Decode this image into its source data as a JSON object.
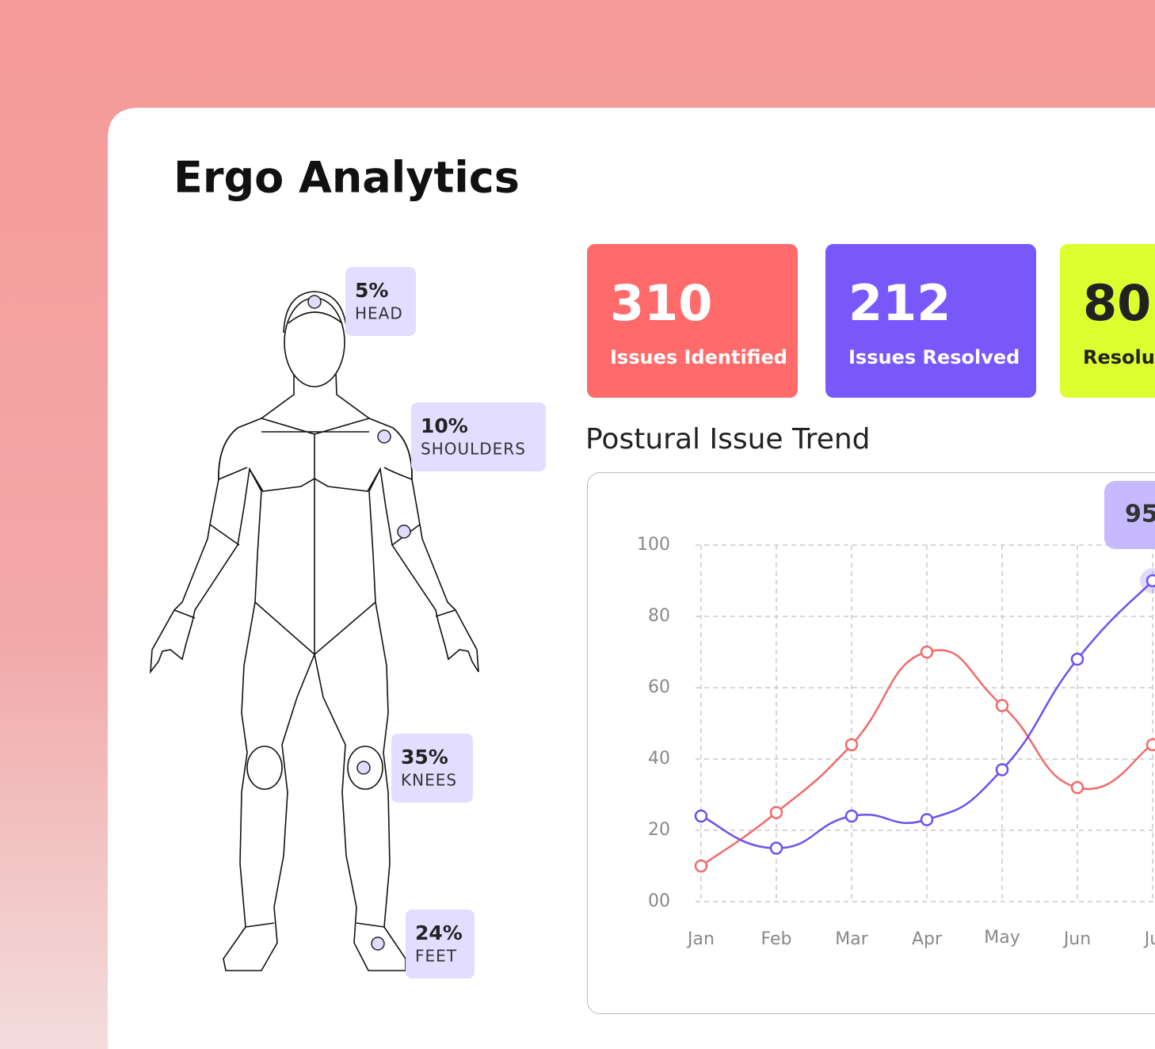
{
  "header": {
    "title": "Ergo Analytics"
  },
  "body_points": [
    {
      "value": "5%",
      "label": "HEAD"
    },
    {
      "value": "10%",
      "label": "SHOULDERS"
    },
    {
      "value": "35%",
      "label": "KNEES"
    },
    {
      "value": "24%",
      "label": "FEET"
    }
  ],
  "stat_cards": [
    {
      "value": 310,
      "label": "Issues Identified",
      "color": "#ff6b6b"
    },
    {
      "value": 212,
      "label": "Issues Resolved",
      "color": "#7858fb"
    },
    {
      "value": 80,
      "label": "Resolu",
      "color": "#ddff2f"
    }
  ],
  "chart_data": {
    "type": "line",
    "title": "Postural Issue Trend",
    "categories": [
      "Jan",
      "Feb",
      "Mar",
      "Apr",
      "May",
      "Jun",
      "Ju"
    ],
    "series": [
      {
        "color": "#f26a6a",
        "values": [
          10,
          25,
          44,
          70,
          55,
          32,
          44
        ]
      },
      {
        "color": "#6e50ef",
        "values": [
          24,
          15,
          24,
          23,
          37,
          68,
          90
        ]
      }
    ],
    "ylim": [
      0,
      100
    ],
    "yticks": [
      {
        "value": 0,
        "label": "00"
      },
      20,
      40,
      60,
      80,
      100
    ],
    "grid": true,
    "tooltip": "95"
  }
}
